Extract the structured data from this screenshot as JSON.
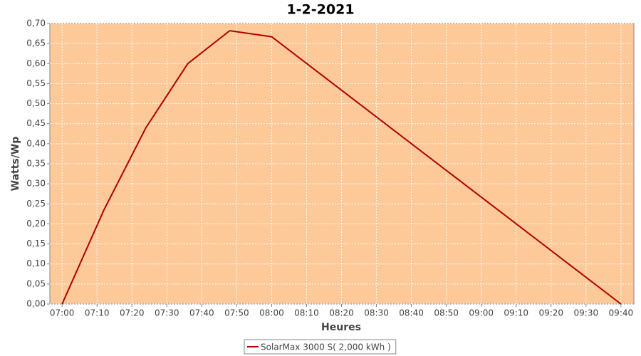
{
  "chart_data": {
    "type": "line",
    "title": "1-2-2021",
    "xlabel": "Heures",
    "ylabel": "Watts/Wp",
    "x": [
      420,
      432,
      444,
      456,
      468,
      480,
      580
    ],
    "series": [
      {
        "name": "SolarMax 3000 S( 2,000 kWh )",
        "color": "#b00000",
        "values": [
          0,
          0.235,
          0.44,
          0.6,
          0.682,
          0.667,
          0
        ]
      }
    ],
    "xlim": [
      416.5,
      583.7
    ],
    "ylim": [
      0,
      0.7
    ],
    "xticks": [
      {
        "value": 420,
        "label": "07:00"
      },
      {
        "value": 430,
        "label": "07:10"
      },
      {
        "value": 440,
        "label": "07:20"
      },
      {
        "value": 450,
        "label": "07:30"
      },
      {
        "value": 460,
        "label": "07:40"
      },
      {
        "value": 470,
        "label": "07:50"
      },
      {
        "value": 480,
        "label": "08:00"
      },
      {
        "value": 490,
        "label": "08:10"
      },
      {
        "value": 500,
        "label": "08:20"
      },
      {
        "value": 510,
        "label": "08:30"
      },
      {
        "value": 520,
        "label": "08:40"
      },
      {
        "value": 530,
        "label": "08:50"
      },
      {
        "value": 540,
        "label": "09:00"
      },
      {
        "value": 550,
        "label": "09:10"
      },
      {
        "value": 560,
        "label": "09:20"
      },
      {
        "value": 570,
        "label": "09:30"
      },
      {
        "value": 580,
        "label": "09:40"
      }
    ],
    "yticks": [
      {
        "value": 0,
        "label": "0,00"
      },
      {
        "value": 0.05,
        "label": "0,05"
      },
      {
        "value": 0.1,
        "label": "0,10"
      },
      {
        "value": 0.15,
        "label": "0,15"
      },
      {
        "value": 0.2,
        "label": "0,20"
      },
      {
        "value": 0.25,
        "label": "0,25"
      },
      {
        "value": 0.3,
        "label": "0,30"
      },
      {
        "value": 0.35,
        "label": "0,35"
      },
      {
        "value": 0.4,
        "label": "0,40"
      },
      {
        "value": 0.45,
        "label": "0,45"
      },
      {
        "value": 0.5,
        "label": "0,50"
      },
      {
        "value": 0.55,
        "label": "0,55"
      },
      {
        "value": 0.6,
        "label": "0,60"
      },
      {
        "value": 0.65,
        "label": "0,65"
      },
      {
        "value": 0.7,
        "label": "0,70"
      }
    ],
    "grid": true,
    "background": "#fdc998",
    "legend": "bottom"
  }
}
